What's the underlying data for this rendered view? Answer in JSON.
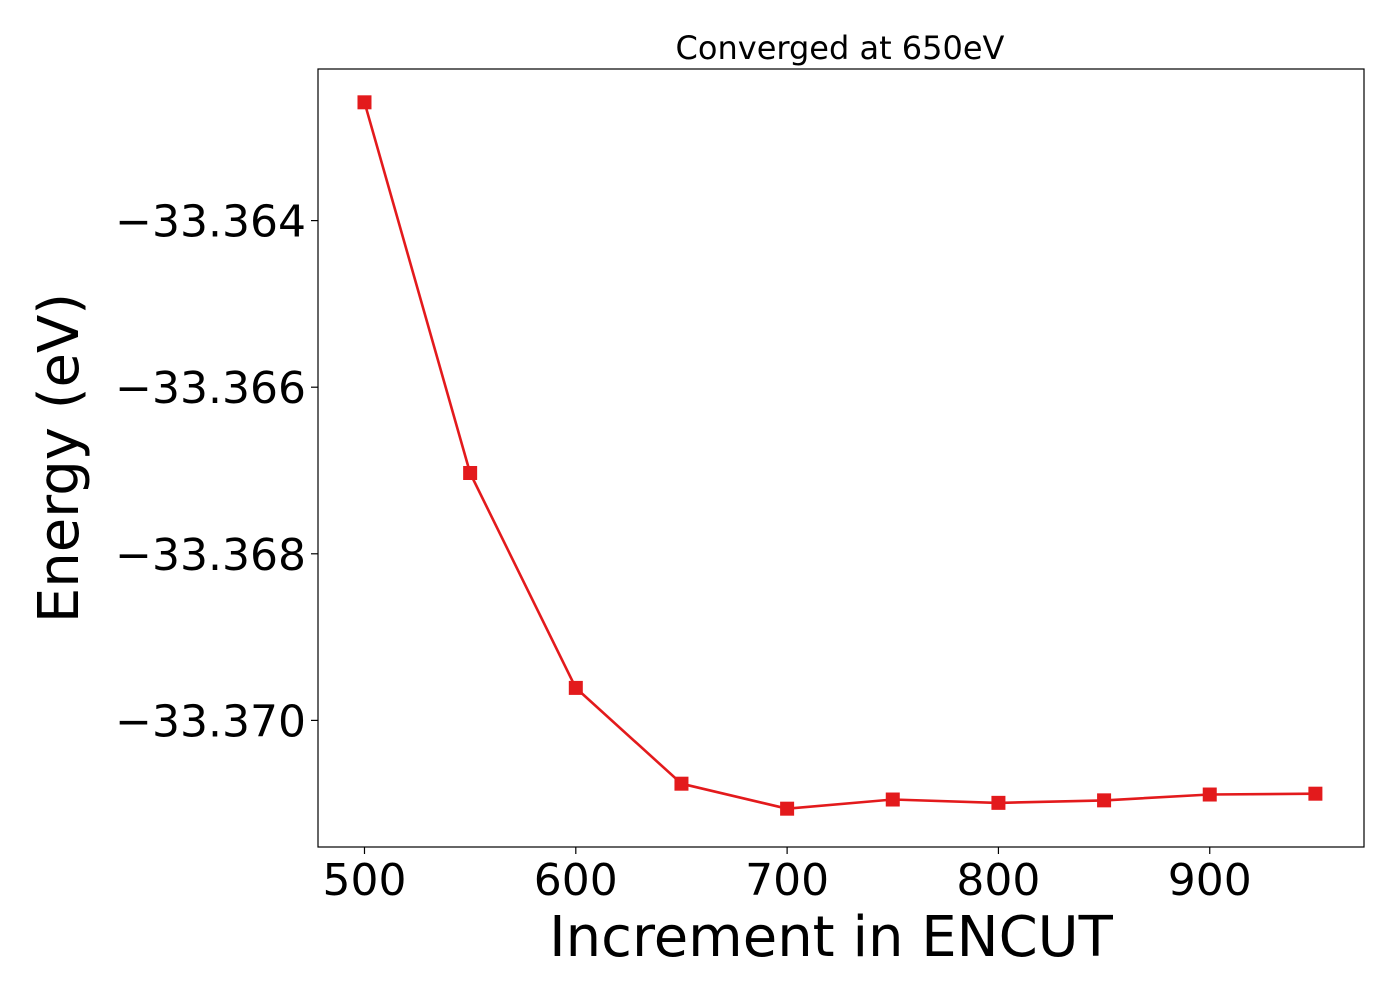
{
  "chart_data": {
    "type": "line",
    "title": "Converged at 650eV",
    "xlabel": "Increment in ENCUT",
    "ylabel": "Energy (eV)",
    "xlim": [
      478,
      973
    ],
    "ylim": [
      -33.37152,
      -33.36218
    ],
    "xticks": [
      500,
      600,
      700,
      800,
      900
    ],
    "xtick_labels": [
      "500",
      "600",
      "700",
      "800",
      "900"
    ],
    "yticks": [
      -33.364,
      -33.366,
      -33.368,
      -33.37
    ],
    "ytick_labels": [
      "−33.364",
      "−33.366",
      "−33.368",
      "−33.370"
    ],
    "grid": false,
    "series": [
      {
        "color": "#e31a1c",
        "marker": "square",
        "x": [
          500,
          550,
          600,
          650,
          700,
          750,
          800,
          850,
          900,
          950
        ],
        "y": [
          -33.36258,
          -33.36703,
          -33.36961,
          -33.37076,
          -33.37106,
          -33.37095,
          -33.37099,
          -33.37096,
          -33.37089,
          -33.37088
        ]
      }
    ]
  }
}
